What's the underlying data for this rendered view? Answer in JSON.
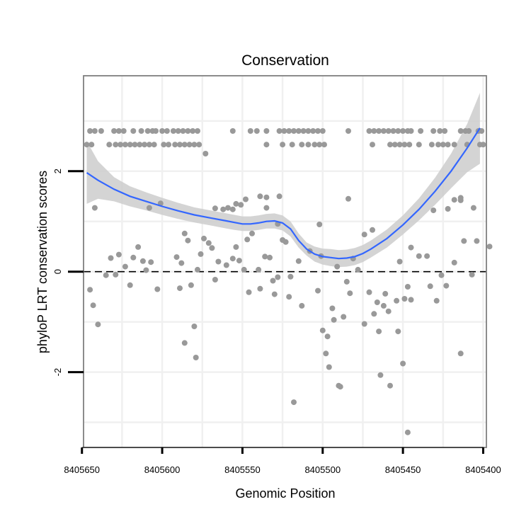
{
  "chart_data": {
    "type": "scatter",
    "title": "Conservation",
    "xlabel": "Genomic Position",
    "ylabel": "phyloP LRT conservation scores",
    "x_reversed": true,
    "xlim": [
      8405649,
      8405398
    ],
    "ylim": [
      -3.5,
      3.9
    ],
    "x_ticks": [
      8405650,
      8405600,
      8405550,
      8405500,
      8405450,
      8405400
    ],
    "x_tick_labels": [
      "8405650",
      "8405600",
      "8405550",
      "8405500",
      "8405450",
      "8405400"
    ],
    "y_ticks": [
      -2,
      0,
      2
    ],
    "y_tick_labels": [
      "-2",
      "0",
      "2"
    ],
    "grid": true,
    "reference_line": {
      "y": 0,
      "style": "dashed"
    },
    "colors": {
      "points": "#999999",
      "smooth_line": "#3366ff",
      "ribbon": "#cccccc",
      "grid": "#f0f0f0",
      "panel_border": "#808080"
    },
    "smooth": {
      "method": "loess",
      "x": [
        8405647,
        8405640,
        8405630,
        8405620,
        8405610,
        8405600,
        8405590,
        8405580,
        8405570,
        8405560,
        8405555,
        8405550,
        8405545,
        8405540,
        8405535,
        8405530,
        8405525,
        8405520,
        8405515,
        8405510,
        8405505,
        8405500,
        8405495,
        8405490,
        8405485,
        8405480,
        8405475,
        8405470,
        8405460,
        8405450,
        8405440,
        8405430,
        8405420,
        8405410,
        8405402
      ],
      "y": [
        1.97,
        1.82,
        1.64,
        1.5,
        1.4,
        1.3,
        1.21,
        1.13,
        1.07,
        1.01,
        0.98,
        0.95,
        0.95,
        0.97,
        1.0,
        1.01,
        0.97,
        0.85,
        0.62,
        0.45,
        0.35,
        0.3,
        0.28,
        0.26,
        0.27,
        0.3,
        0.36,
        0.45,
        0.66,
        0.93,
        1.24,
        1.6,
        2.0,
        2.46,
        2.86
      ],
      "lower": [
        1.35,
        1.45,
        1.4,
        1.3,
        1.22,
        1.13,
        1.05,
        0.98,
        0.92,
        0.86,
        0.83,
        0.81,
        0.81,
        0.83,
        0.86,
        0.86,
        0.82,
        0.7,
        0.48,
        0.32,
        0.2,
        0.14,
        0.11,
        0.09,
        0.1,
        0.13,
        0.19,
        0.28,
        0.48,
        0.74,
        1.02,
        1.33,
        1.66,
        1.98,
        2.15
      ],
      "upper": [
        2.6,
        2.2,
        1.88,
        1.7,
        1.58,
        1.47,
        1.37,
        1.28,
        1.22,
        1.16,
        1.13,
        1.1,
        1.1,
        1.12,
        1.15,
        1.16,
        1.12,
        1.0,
        0.76,
        0.58,
        0.5,
        0.46,
        0.45,
        0.43,
        0.44,
        0.47,
        0.53,
        0.62,
        0.84,
        1.12,
        1.46,
        1.87,
        2.35,
        2.94,
        3.56
      ]
    },
    "points": [
      [
        8405645,
        2.8
      ],
      [
        8405642,
        2.8
      ],
      [
        8405638,
        2.8
      ],
      [
        8405630,
        2.8
      ],
      [
        8405627,
        2.8
      ],
      [
        8405624,
        2.8
      ],
      [
        8405618,
        2.8
      ],
      [
        8405613,
        2.8
      ],
      [
        8405609,
        2.8
      ],
      [
        8405606,
        2.8
      ],
      [
        8405604,
        2.8
      ],
      [
        8405600,
        2.8
      ],
      [
        8405597,
        2.8
      ],
      [
        8405593,
        2.8
      ],
      [
        8405590,
        2.8
      ],
      [
        8405587,
        2.8
      ],
      [
        8405584,
        2.8
      ],
      [
        8405581,
        2.8
      ],
      [
        8405578,
        2.8
      ],
      [
        8405556,
        2.8
      ],
      [
        8405545,
        2.8
      ],
      [
        8405541,
        2.8
      ],
      [
        8405535,
        2.8
      ],
      [
        8405527,
        2.8
      ],
      [
        8405524,
        2.8
      ],
      [
        8405521,
        2.8
      ],
      [
        8405518,
        2.8
      ],
      [
        8405515,
        2.8
      ],
      [
        8405512,
        2.8
      ],
      [
        8405509,
        2.8
      ],
      [
        8405506,
        2.8
      ],
      [
        8405503,
        2.8
      ],
      [
        8405500,
        2.8
      ],
      [
        8405484,
        2.8
      ],
      [
        8405471,
        2.8
      ],
      [
        8405468,
        2.8
      ],
      [
        8405465,
        2.8
      ],
      [
        8405462,
        2.8
      ],
      [
        8405459,
        2.8
      ],
      [
        8405456,
        2.8
      ],
      [
        8405453,
        2.8
      ],
      [
        8405450,
        2.8
      ],
      [
        8405447,
        2.8
      ],
      [
        8405445,
        2.8
      ],
      [
        8405439,
        2.8
      ],
      [
        8405431,
        2.8
      ],
      [
        8405427,
        2.8
      ],
      [
        8405424,
        2.8
      ],
      [
        8405414,
        2.8
      ],
      [
        8405411,
        2.8
      ],
      [
        8405409,
        2.8
      ],
      [
        8405403,
        2.8
      ],
      [
        8405401,
        2.8
      ],
      [
        8405647,
        2.53
      ],
      [
        8405644,
        2.53
      ],
      [
        8405633,
        2.53
      ],
      [
        8405629,
        2.53
      ],
      [
        8405626,
        2.53
      ],
      [
        8405623,
        2.53
      ],
      [
        8405620,
        2.53
      ],
      [
        8405617,
        2.53
      ],
      [
        8405614,
        2.53
      ],
      [
        8405611,
        2.53
      ],
      [
        8405608,
        2.53
      ],
      [
        8405605,
        2.53
      ],
      [
        8405599,
        2.53
      ],
      [
        8405596,
        2.53
      ],
      [
        8405592,
        2.53
      ],
      [
        8405589,
        2.53
      ],
      [
        8405586,
        2.53
      ],
      [
        8405583,
        2.53
      ],
      [
        8405580,
        2.53
      ],
      [
        8405577,
        2.53
      ],
      [
        8405535,
        2.53
      ],
      [
        8405525,
        2.53
      ],
      [
        8405519,
        2.53
      ],
      [
        8405513,
        2.53
      ],
      [
        8405509,
        2.53
      ],
      [
        8405505,
        2.53
      ],
      [
        8405502,
        2.53
      ],
      [
        8405499,
        2.53
      ],
      [
        8405469,
        2.53
      ],
      [
        8405458,
        2.53
      ],
      [
        8405455,
        2.53
      ],
      [
        8405452,
        2.53
      ],
      [
        8405449,
        2.53
      ],
      [
        8405446,
        2.53
      ],
      [
        8405440,
        2.53
      ],
      [
        8405432,
        2.53
      ],
      [
        8405428,
        2.53
      ],
      [
        8405425,
        2.53
      ],
      [
        8405422,
        2.53
      ],
      [
        8405418,
        2.53
      ],
      [
        8405410,
        2.53
      ],
      [
        8405402,
        2.53
      ],
      [
        8405400,
        2.53
      ],
      [
        8405573,
        2.35
      ],
      [
        8405484,
        1.45
      ],
      [
        8405539,
        1.5
      ],
      [
        8405535,
        1.48
      ],
      [
        8405527,
        1.5
      ],
      [
        8405608,
        1.27
      ],
      [
        8405642,
        1.27
      ],
      [
        8405601,
        1.36
      ],
      [
        8405567,
        1.26
      ],
      [
        8405562,
        1.24
      ],
      [
        8405559,
        1.27
      ],
      [
        8405556,
        1.24
      ],
      [
        8405554,
        1.35
      ],
      [
        8405548,
        1.44
      ],
      [
        8405551,
        1.33
      ],
      [
        8405535,
        1.27
      ],
      [
        8405528,
        0.95
      ],
      [
        8405502,
        0.94
      ],
      [
        8405422,
        1.25
      ],
      [
        8405418,
        1.43
      ],
      [
        8405414,
        1.47
      ],
      [
        8405406,
        1.27
      ],
      [
        8405431,
        1.22
      ],
      [
        8405414,
        1.42
      ],
      [
        8405396,
        0.5
      ],
      [
        8405645,
        -0.36
      ],
      [
        8405643,
        -0.67
      ],
      [
        8405640,
        -1.05
      ],
      [
        8405635,
        -0.07
      ],
      [
        8405632,
        0.27
      ],
      [
        8405629,
        -0.06
      ],
      [
        8405627,
        0.34
      ],
      [
        8405623,
        0.1
      ],
      [
        8405620,
        -0.27
      ],
      [
        8405618,
        0.28
      ],
      [
        8405615,
        0.49
      ],
      [
        8405612,
        0.21
      ],
      [
        8405610,
        0.03
      ],
      [
        8405607,
        0.19
      ],
      [
        8405603,
        -0.35
      ],
      [
        8405591,
        0.29
      ],
      [
        8405589,
        -0.33
      ],
      [
        8405588,
        0.17
      ],
      [
        8405586,
        0.76
      ],
      [
        8405586,
        -1.42
      ],
      [
        8405584,
        0.62
      ],
      [
        8405582,
        -0.27
      ],
      [
        8405580,
        -1.09
      ],
      [
        8405579,
        -1.71
      ],
      [
        8405578,
        0.04
      ],
      [
        8405576,
        0.35
      ],
      [
        8405574,
        0.66
      ],
      [
        8405571,
        0.57
      ],
      [
        8405569,
        0.47
      ],
      [
        8405567,
        -0.16
      ],
      [
        8405565,
        0.2
      ],
      [
        8405560,
        0.13
      ],
      [
        8405556,
        0.26
      ],
      [
        8405554,
        0.49
      ],
      [
        8405552,
        0.22
      ],
      [
        8405549,
        0.04
      ],
      [
        8405547,
        0.64
      ],
      [
        8405546,
        -0.41
      ],
      [
        8405544,
        0.76
      ],
      [
        8405540,
        0.04
      ],
      [
        8405539,
        -0.34
      ],
      [
        8405536,
        0.3
      ],
      [
        8405533,
        0.28
      ],
      [
        8405531,
        -0.18
      ],
      [
        8405530,
        -0.45
      ],
      [
        8405528,
        -0.11
      ],
      [
        8405525,
        0.63
      ],
      [
        8405523,
        0.59
      ],
      [
        8405521,
        -0.5
      ],
      [
        8405520,
        -0.1
      ],
      [
        8405518,
        -2.6
      ],
      [
        8405515,
        0.21
      ],
      [
        8405513,
        -0.68
      ],
      [
        8405508,
        0.41
      ],
      [
        8405503,
        -0.38
      ],
      [
        8405501,
        0.31
      ],
      [
        8405500,
        -1.17
      ],
      [
        8405498,
        -1.63
      ],
      [
        8405497,
        -1.29
      ],
      [
        8405496,
        -1.9
      ],
      [
        8405494,
        -0.73
      ],
      [
        8405493,
        -0.96
      ],
      [
        8405491,
        0.1
      ],
      [
        8405490,
        -2.27
      ],
      [
        8405489,
        -2.29
      ],
      [
        8405487,
        -0.9
      ],
      [
        8405485,
        -0.2
      ],
      [
        8405483,
        -0.43
      ],
      [
        8405481,
        0.26
      ],
      [
        8405478,
        0.04
      ],
      [
        8405474,
        -1.04
      ],
      [
        8405474,
        0.74
      ],
      [
        8405471,
        -0.41
      ],
      [
        8405469,
        0.83
      ],
      [
        8405468,
        -0.84
      ],
      [
        8405466,
        -0.61
      ],
      [
        8405465,
        -1.19
      ],
      [
        8405464,
        -2.06
      ],
      [
        8405462,
        -0.68
      ],
      [
        8405461,
        -0.44
      ],
      [
        8405459,
        -0.79
      ],
      [
        8405458,
        -2.27
      ],
      [
        8405454,
        -0.58
      ],
      [
        8405453,
        -1.19
      ],
      [
        8405452,
        0.2
      ],
      [
        8405450,
        -1.83
      ],
      [
        8405449,
        -0.54
      ],
      [
        8405447,
        -3.2
      ],
      [
        8405447,
        -0.3
      ],
      [
        8405445,
        -0.56
      ],
      [
        8405445,
        0.48
      ],
      [
        8405440,
        0.31
      ],
      [
        8405435,
        0.31
      ],
      [
        8405433,
        -0.29
      ],
      [
        8405429,
        -0.58
      ],
      [
        8405426,
        -0.07
      ],
      [
        8405423,
        -0.28
      ],
      [
        8405418,
        0.18
      ],
      [
        8405414,
        -1.63
      ],
      [
        8405412,
        0.61
      ],
      [
        8405407,
        -0.06
      ],
      [
        8405404,
        0.61
      ]
    ]
  }
}
